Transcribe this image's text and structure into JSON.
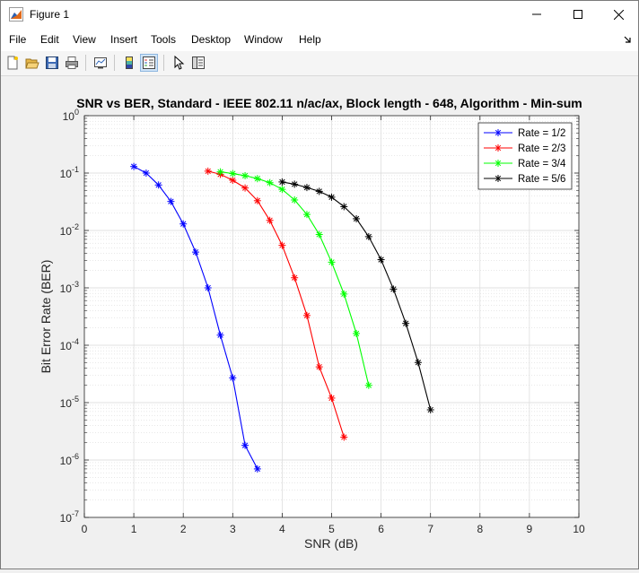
{
  "window": {
    "title": "Figure 1",
    "icons": [
      "matlab-figure-icon",
      "minimize-icon",
      "maximize-icon",
      "close-icon"
    ]
  },
  "menu": {
    "items": [
      "File",
      "Edit",
      "View",
      "Insert",
      "Tools",
      "Desktop",
      "Window",
      "Help"
    ]
  },
  "toolbar": {
    "icons": [
      "new-figure-icon",
      "open-file-icon",
      "save-icon",
      "print-icon",
      "link-plot-icon",
      "insert-colorbar-icon",
      "insert-legend-icon",
      "pointer-icon",
      "property-inspector-icon"
    ],
    "active": "insert-legend-icon"
  },
  "chart_data": {
    "type": "line",
    "title": "SNR vs BER, Standard - IEEE 802.11 n/ac/ax, Block length - 648, Algorithm - Min-sum",
    "xlabel": "SNR (dB)",
    "ylabel": "Bit Error Rate (BER)",
    "xlim": [
      0,
      10
    ],
    "ylim": [
      1e-07,
      1
    ],
    "yscale": "log",
    "xticks": [
      "0",
      "1",
      "2",
      "3",
      "4",
      "5",
      "6",
      "7",
      "8",
      "9",
      "10"
    ],
    "yticks": [
      {
        "base": "10",
        "exp": "0"
      },
      {
        "base": "10",
        "exp": "-1"
      },
      {
        "base": "10",
        "exp": "-2"
      },
      {
        "base": "10",
        "exp": "-3"
      },
      {
        "base": "10",
        "exp": "-4"
      },
      {
        "base": "10",
        "exp": "-5"
      },
      {
        "base": "10",
        "exp": "-6"
      },
      {
        "base": "10",
        "exp": "-7"
      }
    ],
    "grid": true,
    "minor_grid": true,
    "legend_position": "top-right",
    "marker": "asterisk",
    "series": [
      {
        "name": "Rate = 1/2",
        "color": "#0000ff",
        "x": [
          1.0,
          1.25,
          1.5,
          1.75,
          2.0,
          2.25,
          2.5,
          2.75,
          3.0,
          3.25,
          3.5
        ],
        "y": [
          0.13,
          0.1,
          0.062,
          0.032,
          0.013,
          0.0042,
          0.001,
          0.00015,
          2.7e-05,
          1.8e-06,
          7e-07
        ]
      },
      {
        "name": "Rate = 2/3",
        "color": "#ff0000",
        "x": [
          2.5,
          2.75,
          3.0,
          3.25,
          3.5,
          3.75,
          4.0,
          4.25,
          4.5,
          4.75,
          5.0,
          5.25
        ],
        "y": [
          0.108,
          0.095,
          0.075,
          0.055,
          0.033,
          0.015,
          0.0055,
          0.0015,
          0.00033,
          4.2e-05,
          1.2e-05,
          2.5e-06
        ]
      },
      {
        "name": "Rate = 3/4",
        "color": "#00ff00",
        "x": [
          2.75,
          3.0,
          3.25,
          3.5,
          3.75,
          4.0,
          4.25,
          4.5,
          4.75,
          5.0,
          5.25,
          5.5,
          5.75
        ],
        "y": [
          0.105,
          0.098,
          0.09,
          0.08,
          0.068,
          0.052,
          0.034,
          0.019,
          0.0085,
          0.0028,
          0.00078,
          0.00016,
          2e-05
        ]
      },
      {
        "name": "Rate = 5/6",
        "color": "#000000",
        "x": [
          4.0,
          4.25,
          4.5,
          4.75,
          5.0,
          5.25,
          5.5,
          5.75,
          6.0,
          6.25,
          6.5,
          6.75,
          7.0
        ],
        "y": [
          0.07,
          0.064,
          0.056,
          0.048,
          0.038,
          0.026,
          0.016,
          0.0078,
          0.0031,
          0.00095,
          0.00024,
          5e-05,
          7.5e-06
        ]
      }
    ]
  }
}
